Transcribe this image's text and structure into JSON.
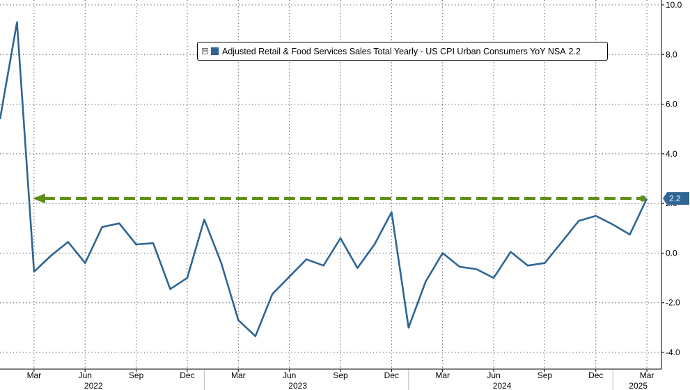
{
  "chart_data": {
    "type": "line",
    "series": [
      {
        "name": "Adjusted Retail & Food Services Sales Total Yearly - US CPI Urban Consumers YoY NSA",
        "color": "#2e6595",
        "x": [
          "2022-01",
          "2022-02",
          "2022-03",
          "2022-04",
          "2022-05",
          "2022-06",
          "2022-07",
          "2022-08",
          "2022-09",
          "2022-10",
          "2022-11",
          "2022-12",
          "2023-01",
          "2023-02",
          "2023-03",
          "2023-04",
          "2023-05",
          "2023-06",
          "2023-07",
          "2023-08",
          "2023-09",
          "2023-10",
          "2023-11",
          "2023-12",
          "2024-01",
          "2024-02",
          "2024-03",
          "2024-04",
          "2024-05",
          "2024-06",
          "2024-07",
          "2024-08",
          "2024-09",
          "2024-10",
          "2024-11",
          "2024-12",
          "2025-01",
          "2025-02",
          "2025-03"
        ],
        "values": [
          5.4,
          9.3,
          -0.75,
          -0.1,
          0.45,
          -0.4,
          1.05,
          1.2,
          0.35,
          0.4,
          -1.45,
          -1.0,
          1.35,
          -0.4,
          -2.7,
          -3.35,
          -1.65,
          -0.95,
          -0.25,
          -0.5,
          0.6,
          -0.6,
          0.35,
          1.65,
          -3.0,
          -1.15,
          0.0,
          -0.55,
          -0.65,
          -1.0,
          0.05,
          -0.5,
          -0.4,
          0.45,
          1.3,
          1.5,
          1.15,
          0.75,
          2.2
        ]
      }
    ],
    "reference_line": {
      "value": 2.2,
      "color": "#5c8f1a",
      "style": "dashed",
      "from": "2022-03",
      "to": "2025-03"
    },
    "x_tick_labels": [
      {
        "label": "Mar",
        "x": "2022-03"
      },
      {
        "label": "Jun",
        "x": "2022-06"
      },
      {
        "label": "Sep",
        "x": "2022-09"
      },
      {
        "label": "Dec",
        "x": "2022-12"
      },
      {
        "label": "Mar",
        "x": "2023-03"
      },
      {
        "label": "Jun",
        "x": "2023-06"
      },
      {
        "label": "Sep",
        "x": "2023-09"
      },
      {
        "label": "Dec",
        "x": "2023-12"
      },
      {
        "label": "Mar",
        "x": "2024-03"
      },
      {
        "label": "Jun",
        "x": "2024-06"
      },
      {
        "label": "Sep",
        "x": "2024-09"
      },
      {
        "label": "Dec",
        "x": "2024-12"
      },
      {
        "label": "Mar",
        "x": "2025-03"
      }
    ],
    "x_year_labels": [
      {
        "label": "2022",
        "x": "2022-06"
      },
      {
        "label": "2023",
        "x": "2023-06"
      },
      {
        "label": "2024",
        "x": "2024-06"
      },
      {
        "label": "2025",
        "x": "2025-02"
      }
    ],
    "y_ticks": [
      "10.0",
      "8.0",
      "6.0",
      "4.0",
      "2.0",
      "0.0",
      "-2.0",
      "-4.0"
    ],
    "y_tick_values": [
      10,
      8,
      6,
      4,
      2,
      0,
      -2,
      -4
    ],
    "ylim": [
      -4.4,
      10.1
    ],
    "y_axis_side": "right",
    "grid": true,
    "grid_style": "dotted",
    "legend_position": "top-center",
    "last_value_label": "2.2"
  },
  "legend": {
    "expand_glyph": "⊞",
    "label": "Adjusted Retail & Food Services Sales Total Yearly - US CPI Urban Consumers YoY NSA",
    "value": "2.2"
  }
}
